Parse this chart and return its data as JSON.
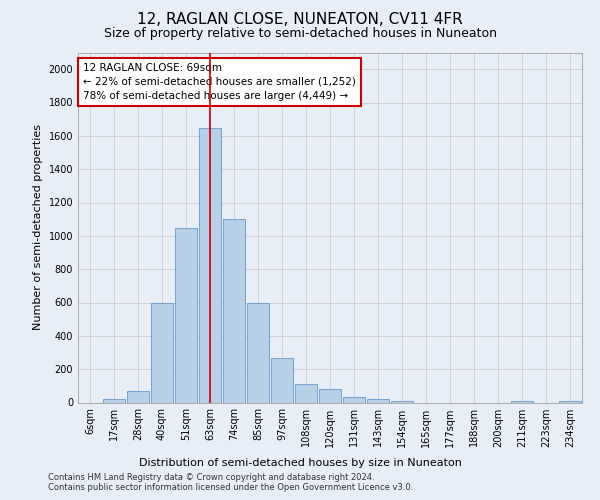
{
  "title": "12, RAGLAN CLOSE, NUNEATON, CV11 4FR",
  "subtitle": "Size of property relative to semi-detached houses in Nuneaton",
  "xlabel": "Distribution of semi-detached houses by size in Nuneaton",
  "ylabel": "Number of semi-detached properties",
  "categories": [
    "6sqm",
    "17sqm",
    "28sqm",
    "40sqm",
    "51sqm",
    "63sqm",
    "74sqm",
    "85sqm",
    "97sqm",
    "108sqm",
    "120sqm",
    "131sqm",
    "143sqm",
    "154sqm",
    "165sqm",
    "177sqm",
    "188sqm",
    "200sqm",
    "211sqm",
    "223sqm",
    "234sqm"
  ],
  "values": [
    0,
    20,
    70,
    600,
    1050,
    1650,
    1100,
    600,
    270,
    110,
    80,
    35,
    20,
    10,
    0,
    0,
    0,
    0,
    10,
    0,
    10
  ],
  "bar_color": "#b8cfe8",
  "bar_edge_color": "#6699cc",
  "red_line_index": 5.5,
  "annotation_text": "12 RAGLAN CLOSE: 69sqm\n← 22% of semi-detached houses are smaller (1,252)\n78% of semi-detached houses are larger (4,449) →",
  "annotation_box_color": "#ffffff",
  "annotation_box_edge": "#cc0000",
  "red_line_color": "#cc0000",
  "grid_color": "#cccccc",
  "background_color": "#e8eef8",
  "ylim": [
    0,
    2100
  ],
  "yticks": [
    0,
    200,
    400,
    600,
    800,
    1000,
    1200,
    1400,
    1600,
    1800,
    2000
  ],
  "footer": "Contains HM Land Registry data © Crown copyright and database right 2024.\nContains public sector information licensed under the Open Government Licence v3.0.",
  "title_fontsize": 11,
  "subtitle_fontsize": 9,
  "axis_label_fontsize": 8,
  "tick_fontsize": 7,
  "annotation_fontsize": 7.5
}
